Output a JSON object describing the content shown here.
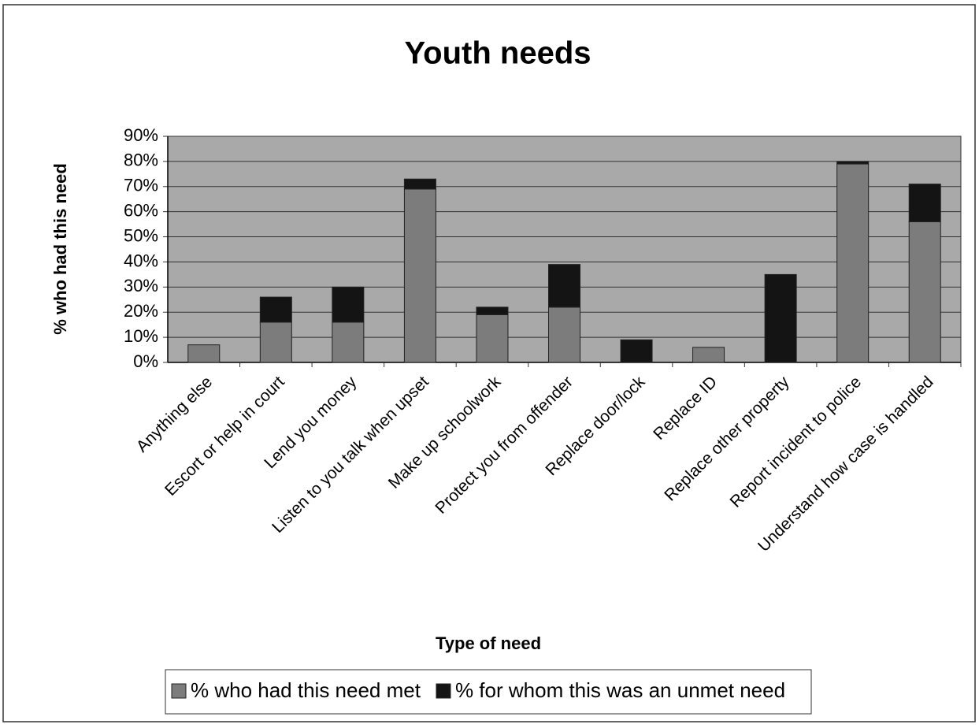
{
  "chart_data": {
    "type": "stacked_bar",
    "title": "Youth needs",
    "x_label": "Type of need",
    "y_label": "% who had this need",
    "categories": [
      "Anything else",
      "Escort or help in court",
      "Lend you money",
      "Listen to you talk when upset",
      "Make up schoolwork",
      "Protect you from offender",
      "Replace door/lock",
      "Replace ID",
      "Replace other property",
      "Report incident to police",
      "Understand how case is handled"
    ],
    "series": [
      {
        "name": "% who had this need met",
        "color": "#7c7c7c",
        "values": [
          7,
          16,
          16,
          69,
          19,
          22,
          0,
          6,
          0,
          79,
          56
        ]
      },
      {
        "name": "% for whom this was an unmet need",
        "color": "#141414",
        "values": [
          0,
          10,
          14,
          4,
          3,
          17,
          9,
          0,
          35,
          1,
          15
        ]
      }
    ],
    "ylim": [
      0,
      90
    ],
    "yticks": [
      {
        "value": 0,
        "label": "0%"
      },
      {
        "value": 10,
        "label": "10%"
      },
      {
        "value": 20,
        "label": "20%"
      },
      {
        "value": 30,
        "label": "30%"
      },
      {
        "value": 40,
        "label": "40%"
      },
      {
        "value": 50,
        "label": "50%"
      },
      {
        "value": 60,
        "label": "60%"
      },
      {
        "value": 70,
        "label": "70%"
      },
      {
        "value": 80,
        "label": "80%"
      },
      {
        "value": 90,
        "label": "90%"
      }
    ],
    "grid": true,
    "legend": "bottom"
  }
}
